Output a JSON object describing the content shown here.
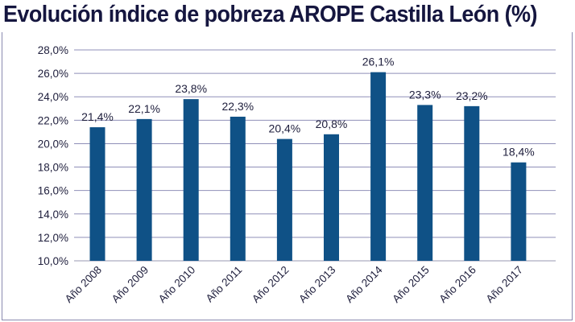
{
  "chart_data": {
    "type": "bar",
    "title": "Evolución índice de pobreza AROPE Castilla León (%)",
    "categories": [
      "Año 2008",
      "Año 2009",
      "Año 2010",
      "Año 2011",
      "Año 2012",
      "Año 2013",
      "Año 2014",
      "Año 2015",
      "Año 2016",
      "Año 2017"
    ],
    "values": [
      21.4,
      22.1,
      23.8,
      22.3,
      20.4,
      20.8,
      26.1,
      23.3,
      23.2,
      18.4
    ],
    "data_labels": [
      "21,4%",
      "22,1%",
      "23,8%",
      "22,3%",
      "20,4%",
      "20,8%",
      "26,1%",
      "23,3%",
      "23,2%",
      "18,4%"
    ],
    "ylim": [
      10,
      28
    ],
    "yticks": [
      "10,0%",
      "12,0%",
      "14,0%",
      "16,0%",
      "18,0%",
      "20,0%",
      "22,0%",
      "24,0%",
      "26,0%",
      "28,0%"
    ],
    "grid": true,
    "legend": "none",
    "bar_color": "#0f5186",
    "grid_color": "#8f8fb8"
  }
}
